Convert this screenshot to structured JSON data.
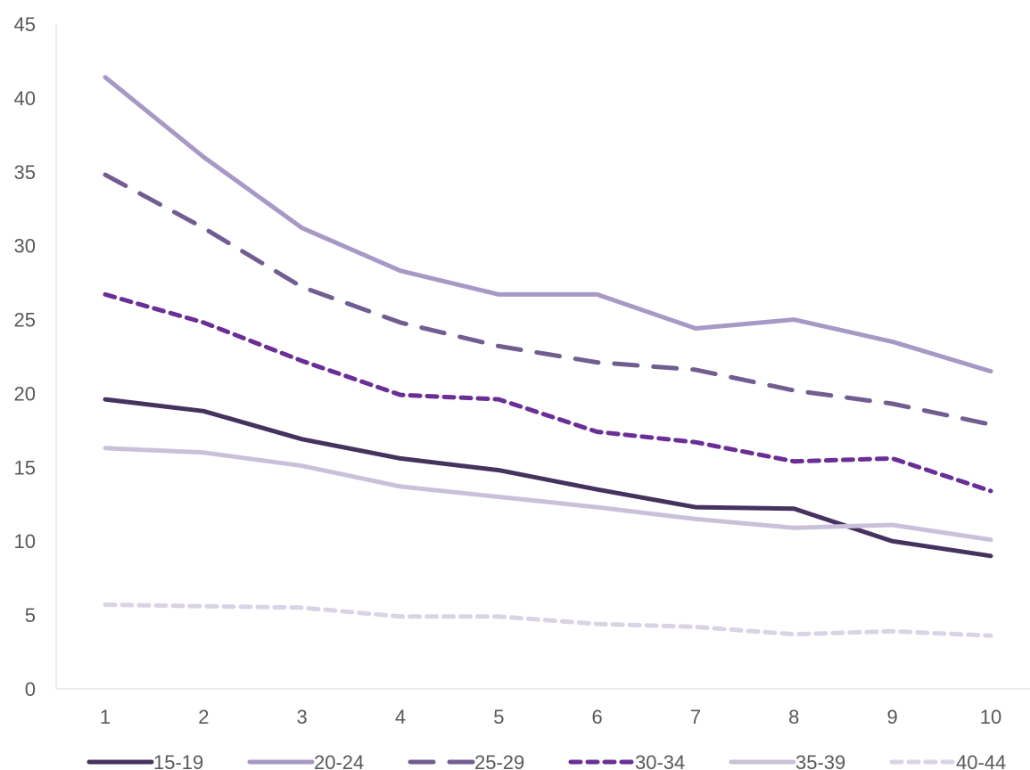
{
  "chart_data": {
    "type": "line",
    "x": [
      1,
      2,
      3,
      4,
      5,
      6,
      7,
      8,
      9,
      10
    ],
    "x_tick_labels": [
      "1",
      "2",
      "3",
      "4",
      "5",
      "6",
      "7",
      "8",
      "9",
      "10"
    ],
    "ylim": [
      0,
      45
    ],
    "y_ticks": [
      0,
      5,
      10,
      15,
      20,
      25,
      30,
      35,
      40,
      45
    ],
    "y_tick_labels": [
      "0",
      "5",
      "10",
      "15",
      "20",
      "25",
      "30",
      "35",
      "40",
      "45"
    ],
    "grid": false,
    "legend_placement": "bottom",
    "series": [
      {
        "name": "15-19",
        "color": "#46325f",
        "dash": "solid",
        "values": [
          19.6,
          18.8,
          16.9,
          15.6,
          14.8,
          13.5,
          12.3,
          12.2,
          10.0,
          9.0
        ]
      },
      {
        "name": "20-24",
        "color": "#a898c6",
        "dash": "solid",
        "values": [
          41.4,
          36.0,
          31.2,
          28.3,
          26.7,
          26.7,
          24.4,
          25.0,
          23.5,
          21.5
        ]
      },
      {
        "name": "25-29",
        "color": "#725d91",
        "dash": "long-dash",
        "values": [
          34.8,
          31.2,
          27.2,
          24.8,
          23.2,
          22.1,
          21.6,
          20.2,
          19.3,
          17.9
        ]
      },
      {
        "name": "30-34",
        "color": "#6b2e97",
        "dash": "short-dash",
        "values": [
          26.7,
          24.8,
          22.2,
          19.9,
          19.6,
          17.4,
          16.7,
          15.4,
          15.6,
          13.4
        ]
      },
      {
        "name": "35-39",
        "color": "#cbc0da",
        "dash": "solid",
        "values": [
          16.3,
          16.0,
          15.1,
          13.7,
          13.0,
          12.3,
          11.5,
          10.9,
          11.1,
          10.1
        ]
      },
      {
        "name": "40-44",
        "color": "#dad3e6",
        "dash": "short-dash",
        "values": [
          5.7,
          5.6,
          5.5,
          4.9,
          4.9,
          4.4,
          4.2,
          3.7,
          3.9,
          3.6
        ]
      }
    ]
  }
}
